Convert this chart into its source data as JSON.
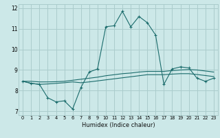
{
  "xlabel": "Humidex (Indice chaleur)",
  "bg_color": "#cce8e8",
  "grid_color": "#aacccc",
  "line_color": "#1a6b6b",
  "xlim": [
    -0.5,
    23.5
  ],
  "ylim": [
    6.8,
    12.2
  ],
  "xticks": [
    0,
    1,
    2,
    3,
    4,
    5,
    6,
    7,
    8,
    9,
    10,
    11,
    12,
    13,
    14,
    15,
    16,
    17,
    18,
    19,
    20,
    21,
    22,
    23
  ],
  "yticks": [
    7,
    8,
    9,
    10,
    11,
    12
  ],
  "series1_x": [
    0,
    1,
    2,
    3,
    4,
    5,
    6,
    7,
    8,
    9,
    10,
    11,
    12,
    13,
    14,
    15,
    16,
    17,
    18,
    19,
    20,
    21,
    22,
    23
  ],
  "series1_y": [
    8.45,
    8.35,
    8.3,
    7.65,
    7.45,
    7.5,
    7.1,
    8.15,
    8.9,
    9.05,
    11.1,
    11.15,
    11.85,
    11.1,
    11.6,
    11.3,
    10.7,
    8.3,
    9.05,
    9.15,
    9.1,
    8.6,
    8.45,
    8.6
  ],
  "series2_x": [
    0,
    1,
    2,
    3,
    4,
    5,
    6,
    7,
    8,
    9,
    10,
    11,
    12,
    13,
    14,
    15,
    16,
    17,
    18,
    19,
    20,
    21,
    22,
    23
  ],
  "series2_y": [
    8.45,
    8.45,
    8.42,
    8.42,
    8.43,
    8.45,
    8.5,
    8.55,
    8.6,
    8.65,
    8.72,
    8.77,
    8.82,
    8.85,
    8.9,
    8.93,
    8.93,
    8.93,
    8.97,
    9.0,
    9.02,
    9.0,
    8.95,
    8.9
  ],
  "series3_x": [
    0,
    1,
    2,
    3,
    4,
    5,
    6,
    7,
    8,
    9,
    10,
    11,
    12,
    13,
    14,
    15,
    16,
    17,
    18,
    19,
    20,
    21,
    22,
    23
  ],
  "series3_y": [
    8.45,
    8.35,
    8.3,
    8.32,
    8.35,
    8.38,
    8.42,
    8.38,
    8.42,
    8.47,
    8.52,
    8.57,
    8.62,
    8.67,
    8.72,
    8.77,
    8.77,
    8.77,
    8.8,
    8.82,
    8.82,
    8.78,
    8.73,
    8.68
  ]
}
